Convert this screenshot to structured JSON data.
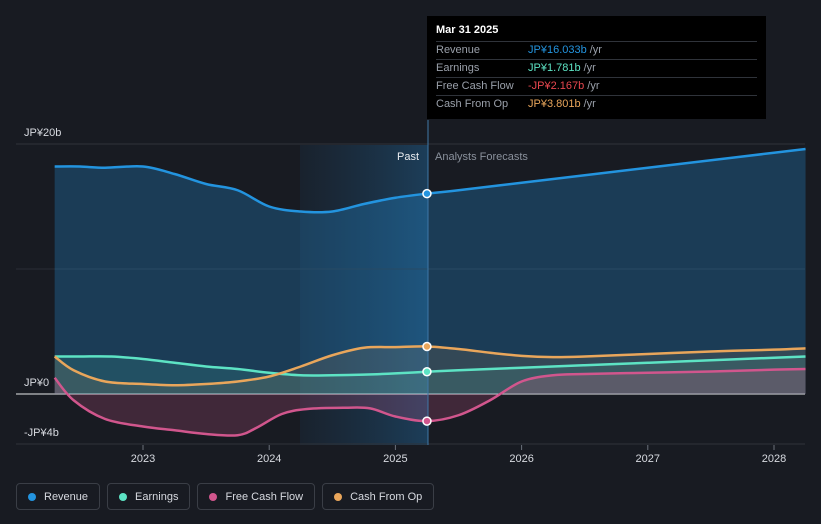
{
  "chart_data": {
    "type": "line",
    "x_ticks": [
      "2023",
      "2024",
      "2025",
      "2026",
      "2027",
      "2028"
    ],
    "y_labels": {
      "top": "JP¥20b",
      "zero": "JP¥0",
      "bottom": "-JP¥4b"
    },
    "ylim": [
      -4,
      20
    ],
    "regions": {
      "past": "Past",
      "forecast": "Analysts Forecasts"
    },
    "series": [
      {
        "key": "revenue",
        "name": "Revenue",
        "color": "#2394df",
        "points": [
          [
            2022.3,
            18.2
          ],
          [
            2022.5,
            18.2
          ],
          [
            2022.7,
            18.1
          ],
          [
            2023.0,
            18.2
          ],
          [
            2023.25,
            17.6
          ],
          [
            2023.5,
            16.8
          ],
          [
            2023.75,
            16.3
          ],
          [
            2024.0,
            15.0
          ],
          [
            2024.25,
            14.6
          ],
          [
            2024.5,
            14.6
          ],
          [
            2024.75,
            15.2
          ],
          [
            2025.0,
            15.7
          ],
          [
            2025.25,
            16.03
          ],
          [
            2025.5,
            16.3
          ],
          [
            2026.0,
            16.9
          ],
          [
            2026.5,
            17.5
          ],
          [
            2027.0,
            18.1
          ],
          [
            2027.5,
            18.7
          ],
          [
            2028.0,
            19.3
          ],
          [
            2028.25,
            19.6
          ]
        ]
      },
      {
        "key": "earnings",
        "name": "Earnings",
        "color": "#5de3c4",
        "points": [
          [
            2022.3,
            3.0
          ],
          [
            2022.5,
            3.0
          ],
          [
            2022.75,
            3.0
          ],
          [
            2023.0,
            2.8
          ],
          [
            2023.25,
            2.5
          ],
          [
            2023.5,
            2.2
          ],
          [
            2023.75,
            2.0
          ],
          [
            2024.0,
            1.7
          ],
          [
            2024.25,
            1.5
          ],
          [
            2024.5,
            1.5
          ],
          [
            2024.75,
            1.55
          ],
          [
            2025.0,
            1.65
          ],
          [
            2025.25,
            1.781
          ],
          [
            2025.5,
            1.9
          ],
          [
            2026.0,
            2.1
          ],
          [
            2026.5,
            2.3
          ],
          [
            2027.0,
            2.5
          ],
          [
            2027.5,
            2.7
          ],
          [
            2028.0,
            2.9
          ],
          [
            2028.25,
            3.0
          ]
        ]
      },
      {
        "key": "fcf",
        "name": "Free Cash Flow",
        "color": "#d1568d",
        "points": [
          [
            2022.3,
            1.3
          ],
          [
            2022.45,
            -0.5
          ],
          [
            2022.7,
            -2.0
          ],
          [
            2023.0,
            -2.6
          ],
          [
            2023.25,
            -2.9
          ],
          [
            2023.5,
            -3.2
          ],
          [
            2023.75,
            -3.3
          ],
          [
            2023.9,
            -2.7
          ],
          [
            2024.1,
            -1.6
          ],
          [
            2024.3,
            -1.2
          ],
          [
            2024.6,
            -1.1
          ],
          [
            2024.8,
            -1.15
          ],
          [
            2025.0,
            -1.8
          ],
          [
            2025.25,
            -2.167
          ],
          [
            2025.5,
            -1.7
          ],
          [
            2025.75,
            -0.5
          ],
          [
            2026.0,
            1.0
          ],
          [
            2026.25,
            1.5
          ],
          [
            2026.5,
            1.6
          ],
          [
            2027.0,
            1.7
          ],
          [
            2027.5,
            1.8
          ],
          [
            2028.0,
            1.95
          ],
          [
            2028.25,
            2.0
          ]
        ]
      },
      {
        "key": "cfo",
        "name": "Cash From Op",
        "color": "#e9a65b",
        "points": [
          [
            2022.3,
            3.0
          ],
          [
            2022.45,
            1.9
          ],
          [
            2022.7,
            1.0
          ],
          [
            2023.0,
            0.8
          ],
          [
            2023.25,
            0.7
          ],
          [
            2023.5,
            0.8
          ],
          [
            2023.75,
            1.0
          ],
          [
            2024.0,
            1.4
          ],
          [
            2024.25,
            2.2
          ],
          [
            2024.5,
            3.1
          ],
          [
            2024.75,
            3.7
          ],
          [
            2025.0,
            3.75
          ],
          [
            2025.25,
            3.801
          ],
          [
            2025.5,
            3.6
          ],
          [
            2025.75,
            3.3
          ],
          [
            2026.0,
            3.05
          ],
          [
            2026.25,
            2.95
          ],
          [
            2026.5,
            3.0
          ],
          [
            2027.0,
            3.2
          ],
          [
            2027.5,
            3.4
          ],
          [
            2028.0,
            3.55
          ],
          [
            2028.25,
            3.65
          ]
        ]
      }
    ]
  },
  "tooltip": {
    "date": "Mar 31 2025",
    "unit": "/yr",
    "rows": [
      {
        "label": "Revenue",
        "value": "JP¥16.033b",
        "color": "#2394df"
      },
      {
        "label": "Earnings",
        "value": "JP¥1.781b",
        "color": "#5de3c4"
      },
      {
        "label": "Free Cash Flow",
        "value": "-JP¥2.167b",
        "color": "#e8474f"
      },
      {
        "label": "Cash From Op",
        "value": "JP¥3.801b",
        "color": "#e9a65b"
      }
    ]
  },
  "legend": [
    {
      "label": "Revenue",
      "color": "#2394df"
    },
    {
      "label": "Earnings",
      "color": "#5de3c4"
    },
    {
      "label": "Free Cash Flow",
      "color": "#d1568d"
    },
    {
      "label": "Cash From Op",
      "color": "#e9a65b"
    }
  ]
}
